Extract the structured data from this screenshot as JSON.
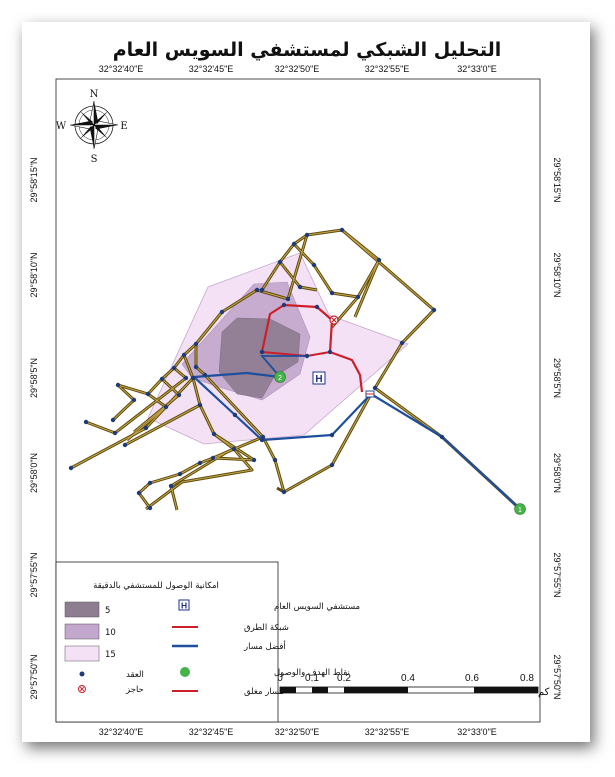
{
  "title": "التحليل الشبكي لمستشفي السويس العام",
  "graticule": {
    "top_labels": [
      "32°32'40\"E",
      "32°32'45\"E",
      "32°32'50\"E",
      "32°32'55\"E",
      "32°33'0\"E"
    ],
    "bottom_labels": [
      "32°32'40\"E",
      "32°32'45\"E",
      "32°32'50\"E",
      "32°32'55\"E",
      "32°33'0\"E"
    ],
    "left_labels": [
      "29°58'15\"N",
      "29°58'10\"N",
      "29°58'5\"N",
      "29°58'0\"N",
      "29°57'55\"N",
      "29°57'50\"N"
    ],
    "right_labels": [
      "29°58'15\"N",
      "29°58'10\"N",
      "29°58'5\"N",
      "29°58'0\"N",
      "29°57'55\"N",
      "29°57'50\"N"
    ]
  },
  "compass": {
    "n": "N",
    "s": "S",
    "e": "E",
    "w": "W"
  },
  "hospital_symbol": "H",
  "stops": {
    "start": "1",
    "end": "2"
  },
  "scale_bar": {
    "labels": [
      "0",
      "0.1",
      "0.2",
      "0.4",
      "0.6",
      "0.8"
    ],
    "unit": "كم"
  },
  "legend": {
    "isochrone_title": "امكانية الوصول للمستشفي بالدقيقة",
    "isochrones": [
      {
        "label": "5",
        "color": "#8e7c91"
      },
      {
        "label": "10",
        "color": "#c3a7cc"
      },
      {
        "label": "15",
        "color": "#f4e1f6"
      }
    ],
    "nodes_label": "العقد",
    "barrier_label": "حاجز",
    "hospital_label": "مستشفي السويس العام",
    "road_network_label": "شبكة الطرق",
    "best_route_label": "أفضل مسار",
    "stops_label": "نقاط الهدف والوصول",
    "closed_route_label": "مسار مغلق"
  },
  "colors": {
    "road": "#6b5a12",
    "road_red": "#cc1f2a",
    "route_blue": "#1e4f9c",
    "node": "#1e3a78",
    "stop": "#45b24a"
  }
}
